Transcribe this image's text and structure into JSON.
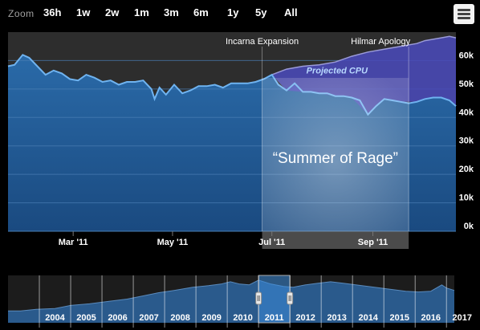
{
  "toolbar": {
    "zoom_label": "Zoom",
    "buttons": [
      "36h",
      "1w",
      "2w",
      "1m",
      "3m",
      "6m",
      "1y",
      "5y",
      "All"
    ]
  },
  "colors": {
    "background": "#000000",
    "area_top": "#2a6aa8",
    "area_bottom": "#1a4a80",
    "line": "#6fb3f0",
    "projection_fill": "#4a4ab8",
    "projection_line": "#9a9ad8",
    "grid": "#4a7fb5",
    "band": "#888888",
    "navigator_fill": "#2a5a8c",
    "navigator_selected": "#3a8ad8"
  },
  "chart_data": {
    "type": "area",
    "title": "",
    "xlabel": "",
    "ylabel": "",
    "x_range": [
      "2011-01-20",
      "2011-10-22"
    ],
    "ylim": [
      0,
      70000
    ],
    "y_ticks": [
      0,
      10000,
      20000,
      30000,
      40000,
      50000,
      60000
    ],
    "y_tick_labels": [
      "0k",
      "10k",
      "20k",
      "30k",
      "40k",
      "50k",
      "60k"
    ],
    "x_ticks": [
      "2011-03-01",
      "2011-05-01",
      "2011-07-01",
      "2011-09-01"
    ],
    "x_tick_labels": [
      "Mar '11",
      "May '11",
      "Jul '11",
      "Sep '11"
    ],
    "grid": true,
    "series": [
      {
        "type": "area",
        "x": [
          "2011-01-20",
          "2011-01-24",
          "2011-01-29",
          "2011-02-02",
          "2011-02-07",
          "2011-02-12",
          "2011-02-17",
          "2011-02-22",
          "2011-02-27",
          "2011-03-04",
          "2011-03-09",
          "2011-03-14",
          "2011-03-19",
          "2011-03-24",
          "2011-03-29",
          "2011-04-03",
          "2011-04-08",
          "2011-04-13",
          "2011-04-18",
          "2011-04-20",
          "2011-04-23",
          "2011-04-27",
          "2011-05-02",
          "2011-05-07",
          "2011-05-12",
          "2011-05-17",
          "2011-05-22",
          "2011-05-27",
          "2011-06-01",
          "2011-06-06",
          "2011-06-11",
          "2011-06-16",
          "2011-06-21",
          "2011-06-26",
          "2011-07-01",
          "2011-07-05",
          "2011-07-10",
          "2011-07-15",
          "2011-07-20",
          "2011-07-25",
          "2011-07-30",
          "2011-08-04",
          "2011-08-09",
          "2011-08-14",
          "2011-08-19",
          "2011-08-24",
          "2011-08-29",
          "2011-09-03",
          "2011-09-08",
          "2011-09-13",
          "2011-09-18",
          "2011-09-23",
          "2011-09-28",
          "2011-10-03",
          "2011-10-08",
          "2011-10-13",
          "2011-10-18",
          "2011-10-22"
        ],
        "values": [
          58000,
          58500,
          62000,
          61000,
          58000,
          55000,
          56500,
          55500,
          53500,
          53000,
          55000,
          54000,
          52500,
          53000,
          51500,
          52500,
          52500,
          53000,
          50000,
          46500,
          50500,
          48000,
          51500,
          48500,
          49500,
          51000,
          51000,
          51500,
          50500,
          52000,
          52000,
          52000,
          52500,
          53500,
          55000,
          51500,
          49500,
          52000,
          49000,
          49000,
          48500,
          48500,
          47500,
          47500,
          47000,
          46000,
          41000,
          44000,
          46500,
          46000,
          45500,
          45000,
          45500,
          46500,
          47000,
          47000,
          46000,
          44000
        ]
      },
      {
        "name": "Projected CPU",
        "type": "area",
        "x": [
          "2011-07-01",
          "2011-07-10",
          "2011-07-20",
          "2011-07-30",
          "2011-08-09",
          "2011-08-19",
          "2011-08-29",
          "2011-09-08",
          "2011-09-18",
          "2011-09-28",
          "2011-10-03",
          "2011-10-08",
          "2011-10-13",
          "2011-10-18",
          "2011-10-22"
        ],
        "values": [
          55000,
          57000,
          58000,
          58500,
          59500,
          61500,
          63000,
          64000,
          65000,
          66000,
          67000,
          67500,
          68000,
          68500,
          68000
        ]
      }
    ],
    "bands": [
      {
        "label": "“Summer of Rage”",
        "from": "2011-06-25",
        "to": "2011-09-23"
      }
    ],
    "annotations": [
      {
        "label": "Incarna Expansion",
        "date": "2011-06-25"
      },
      {
        "label": "Hilmar Apology",
        "date": "2011-09-23"
      },
      {
        "label": "Projected CPU",
        "date": "2011-08-10",
        "value": 55500
      }
    ],
    "navigator": {
      "year_labels": [
        "2004",
        "2005",
        "2006",
        "2007",
        "2008",
        "2009",
        "2010",
        "2011",
        "2012",
        "2013",
        "2014",
        "2015",
        "2016",
        "2017"
      ],
      "year_range": [
        2003,
        2017.25
      ],
      "selected_years": [
        "2011"
      ],
      "profile": [
        {
          "year": 2003.0,
          "value": 30
        },
        {
          "year": 2003.4,
          "value": 30
        },
        {
          "year": 2003.9,
          "value": 34
        },
        {
          "year": 2004.5,
          "value": 36
        },
        {
          "year": 2005.0,
          "value": 44
        },
        {
          "year": 2005.6,
          "value": 48
        },
        {
          "year": 2006.2,
          "value": 54
        },
        {
          "year": 2006.8,
          "value": 60
        },
        {
          "year": 2007.3,
          "value": 68
        },
        {
          "year": 2007.8,
          "value": 76
        },
        {
          "year": 2008.3,
          "value": 82
        },
        {
          "year": 2008.9,
          "value": 90
        },
        {
          "year": 2009.4,
          "value": 94
        },
        {
          "year": 2009.8,
          "value": 98
        },
        {
          "year": 2010.1,
          "value": 104
        },
        {
          "year": 2010.4,
          "value": 98
        },
        {
          "year": 2010.7,
          "value": 96
        },
        {
          "year": 2011.0,
          "value": 108
        },
        {
          "year": 2011.4,
          "value": 98
        },
        {
          "year": 2011.8,
          "value": 92
        },
        {
          "year": 2012.1,
          "value": 90
        },
        {
          "year": 2012.5,
          "value": 96
        },
        {
          "year": 2012.9,
          "value": 100
        },
        {
          "year": 2013.3,
          "value": 104
        },
        {
          "year": 2013.7,
          "value": 100
        },
        {
          "year": 2014.1,
          "value": 96
        },
        {
          "year": 2014.5,
          "value": 92
        },
        {
          "year": 2014.9,
          "value": 88
        },
        {
          "year": 2015.3,
          "value": 84
        },
        {
          "year": 2015.7,
          "value": 80
        },
        {
          "year": 2016.1,
          "value": 78
        },
        {
          "year": 2016.5,
          "value": 80
        },
        {
          "year": 2016.85,
          "value": 96
        },
        {
          "year": 2017.0,
          "value": 88
        },
        {
          "year": 2017.25,
          "value": 82
        }
      ]
    }
  }
}
